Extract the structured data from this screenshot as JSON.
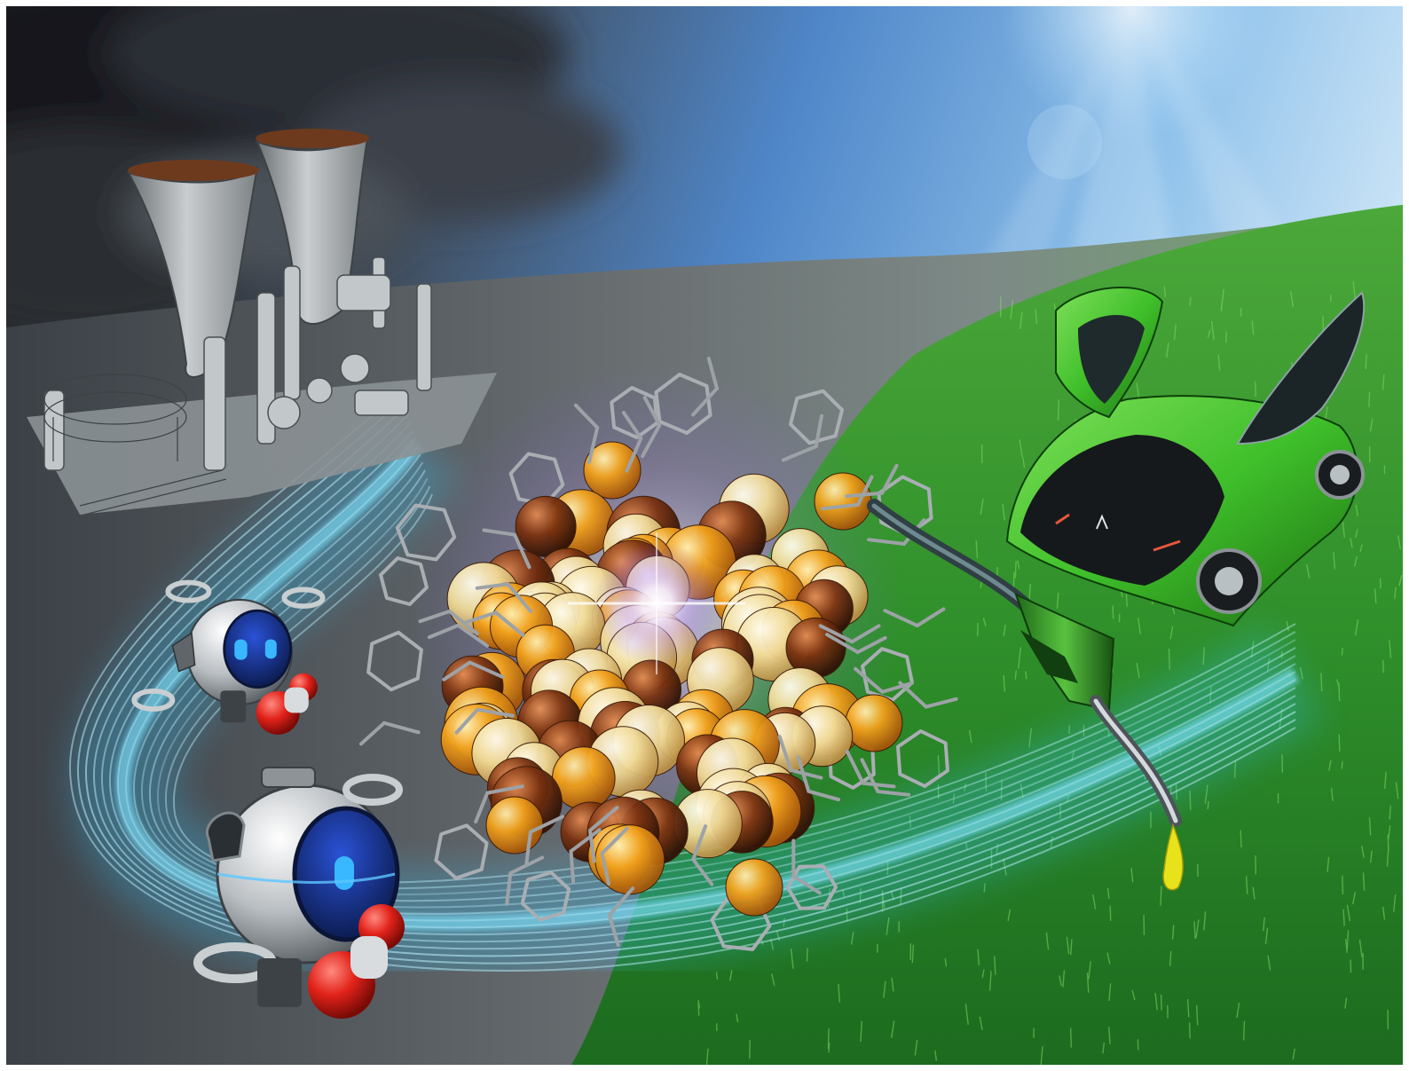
{
  "scene": {
    "colors": {
      "storm_sky": "#2b2f36",
      "blue_sky": "#4f86c8",
      "wasteland": "#5f6468",
      "grass": "#2f8f2a",
      "energy_stream": "#35c8ff",
      "car_body": "#3fbf2a",
      "gold_atom": "#f0a21e",
      "cream_atom": "#f3e0a2",
      "copper_atom": "#8a3c12",
      "robot_eye": "#163a9e",
      "robot_grip": "#e2231a"
    },
    "elements": [
      "storm-clouds",
      "sun-rays",
      "power-plant",
      "energy-stream",
      "nanocluster",
      "ligand-rings",
      "robot",
      "fuel-nozzle",
      "fuel-drop",
      "green-car",
      "grass-field"
    ]
  }
}
